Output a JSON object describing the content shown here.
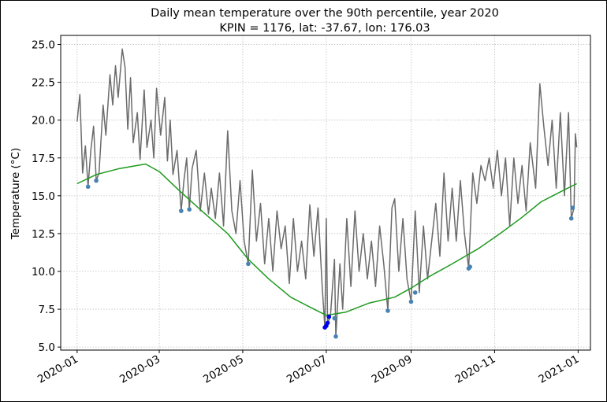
{
  "chart_data": {
    "type": "line",
    "title": "Daily mean temperature over the 90th percentile, year 2020",
    "subtitle": "KPIN = 1176, lat: -37.67, lon: 176.03",
    "xlabel": "",
    "ylabel": "Temperature (°C)",
    "ylim": [
      4.8,
      25.6
    ],
    "yticks": [
      5.0,
      7.5,
      10.0,
      12.5,
      15.0,
      17.5,
      20.0,
      22.5,
      25.0
    ],
    "ytick_labels": [
      "5.0",
      "7.5",
      "10.0",
      "12.5",
      "15.0",
      "17.5",
      "20.0",
      "22.5",
      "25.0"
    ],
    "xlim": [
      "2019-12-20",
      "2021-01-10"
    ],
    "xticks": [
      "2020-01-01",
      "2020-03-01",
      "2020-05-01",
      "2020-07-01",
      "2020-09-01",
      "2020-11-01",
      "2021-01-01"
    ],
    "xtick_labels": [
      "2020-01",
      "2020-03",
      "2020-05",
      "2020-07",
      "2020-09",
      "2020-11",
      "2021-01"
    ],
    "grid": true,
    "series": [
      {
        "style": "daily-mean-line",
        "color": "#6b6b6b",
        "points": [
          [
            "2020-01-01",
            19.9
          ],
          [
            "2020-01-03",
            21.7
          ],
          [
            "2020-01-05",
            16.5
          ],
          [
            "2020-01-07",
            18.3
          ],
          [
            "2020-01-09",
            15.6
          ],
          [
            "2020-01-11",
            18.0
          ],
          [
            "2020-01-13",
            19.6
          ],
          [
            "2020-01-15",
            16.0
          ],
          [
            "2020-01-17",
            16.5
          ],
          [
            "2020-01-20",
            21.0
          ],
          [
            "2020-01-22",
            19.0
          ],
          [
            "2020-01-25",
            23.0
          ],
          [
            "2020-01-27",
            21.0
          ],
          [
            "2020-01-29",
            23.6
          ],
          [
            "2020-01-31",
            21.5
          ],
          [
            "2020-02-03",
            24.7
          ],
          [
            "2020-02-05",
            23.5
          ],
          [
            "2020-02-07",
            19.4
          ],
          [
            "2020-02-09",
            22.8
          ],
          [
            "2020-02-11",
            18.5
          ],
          [
            "2020-02-14",
            20.5
          ],
          [
            "2020-02-16",
            17.4
          ],
          [
            "2020-02-19",
            22.0
          ],
          [
            "2020-02-21",
            18.2
          ],
          [
            "2020-02-24",
            20.0
          ],
          [
            "2020-02-26",
            17.5
          ],
          [
            "2020-02-28",
            22.1
          ],
          [
            "2020-03-02",
            19.0
          ],
          [
            "2020-03-05",
            21.5
          ],
          [
            "2020-03-07",
            17.3
          ],
          [
            "2020-03-09",
            20.0
          ],
          [
            "2020-03-11",
            16.4
          ],
          [
            "2020-03-14",
            18.0
          ],
          [
            "2020-03-17",
            14.0
          ],
          [
            "2020-03-19",
            16.0
          ],
          [
            "2020-03-21",
            17.5
          ],
          [
            "2020-03-23",
            14.1
          ],
          [
            "2020-03-25",
            16.8
          ],
          [
            "2020-03-28",
            18.0
          ],
          [
            "2020-03-31",
            14.0
          ],
          [
            "2020-04-03",
            16.5
          ],
          [
            "2020-04-06",
            13.8
          ],
          [
            "2020-04-08",
            15.5
          ],
          [
            "2020-04-11",
            13.5
          ],
          [
            "2020-04-14",
            16.5
          ],
          [
            "2020-04-17",
            13.0
          ],
          [
            "2020-04-20",
            19.3
          ],
          [
            "2020-04-23",
            14.0
          ],
          [
            "2020-04-26",
            12.5
          ],
          [
            "2020-04-29",
            16.0
          ],
          [
            "2020-05-02",
            12.0
          ],
          [
            "2020-05-05",
            10.5
          ],
          [
            "2020-05-08",
            16.7
          ],
          [
            "2020-05-11",
            12.0
          ],
          [
            "2020-05-14",
            14.5
          ],
          [
            "2020-05-17",
            10.5
          ],
          [
            "2020-05-20",
            13.5
          ],
          [
            "2020-05-23",
            10.0
          ],
          [
            "2020-05-26",
            14.0
          ],
          [
            "2020-05-29",
            11.5
          ],
          [
            "2020-06-01",
            13.0
          ],
          [
            "2020-06-04",
            9.2
          ],
          [
            "2020-06-07",
            13.5
          ],
          [
            "2020-06-10",
            10.0
          ],
          [
            "2020-06-13",
            12.0
          ],
          [
            "2020-06-16",
            9.5
          ],
          [
            "2020-06-19",
            14.4
          ],
          [
            "2020-06-22",
            11.0
          ],
          [
            "2020-06-25",
            14.2
          ],
          [
            "2020-06-28",
            9.0
          ],
          [
            "2020-06-30",
            6.3
          ],
          [
            "2020-07-01",
            13.5
          ],
          [
            "2020-07-02",
            6.6
          ],
          [
            "2020-07-04",
            7.0
          ],
          [
            "2020-07-07",
            10.8
          ],
          [
            "2020-07-08",
            5.7
          ],
          [
            "2020-07-11",
            10.5
          ],
          [
            "2020-07-13",
            7.5
          ],
          [
            "2020-07-16",
            13.5
          ],
          [
            "2020-07-19",
            9.0
          ],
          [
            "2020-07-22",
            14.0
          ],
          [
            "2020-07-25",
            10.0
          ],
          [
            "2020-07-28",
            12.5
          ],
          [
            "2020-07-31",
            9.5
          ],
          [
            "2020-08-03",
            12.0
          ],
          [
            "2020-08-06",
            9.0
          ],
          [
            "2020-08-09",
            13.0
          ],
          [
            "2020-08-12",
            10.5
          ],
          [
            "2020-08-15",
            7.4
          ],
          [
            "2020-08-18",
            14.2
          ],
          [
            "2020-08-20",
            14.8
          ],
          [
            "2020-08-23",
            10.0
          ],
          [
            "2020-08-26",
            13.5
          ],
          [
            "2020-08-29",
            9.5
          ],
          [
            "2020-09-01",
            8.0
          ],
          [
            "2020-09-04",
            14.0
          ],
          [
            "2020-09-07",
            8.6
          ],
          [
            "2020-09-10",
            13.0
          ],
          [
            "2020-09-13",
            9.5
          ],
          [
            "2020-09-16",
            12.0
          ],
          [
            "2020-09-19",
            14.5
          ],
          [
            "2020-09-22",
            11.0
          ],
          [
            "2020-09-25",
            16.5
          ],
          [
            "2020-09-28",
            12.0
          ],
          [
            "2020-10-01",
            15.5
          ],
          [
            "2020-10-04",
            12.0
          ],
          [
            "2020-10-07",
            16.0
          ],
          [
            "2020-10-10",
            12.5
          ],
          [
            "2020-10-13",
            10.2
          ],
          [
            "2020-10-16",
            16.5
          ],
          [
            "2020-10-19",
            14.5
          ],
          [
            "2020-10-22",
            17.0
          ],
          [
            "2020-10-25",
            16.0
          ],
          [
            "2020-10-28",
            17.5
          ],
          [
            "2020-10-31",
            15.5
          ],
          [
            "2020-11-03",
            18.0
          ],
          [
            "2020-11-06",
            15.0
          ],
          [
            "2020-11-09",
            17.5
          ],
          [
            "2020-11-12",
            13.0
          ],
          [
            "2020-11-15",
            17.5
          ],
          [
            "2020-11-18",
            14.5
          ],
          [
            "2020-11-21",
            17.0
          ],
          [
            "2020-11-24",
            14.0
          ],
          [
            "2020-11-27",
            18.5
          ],
          [
            "2020-12-01",
            15.5
          ],
          [
            "2020-12-04",
            22.4
          ],
          [
            "2020-12-07",
            19.5
          ],
          [
            "2020-12-10",
            17.0
          ],
          [
            "2020-12-13",
            20.0
          ],
          [
            "2020-12-16",
            15.5
          ],
          [
            "2020-12-19",
            20.5
          ],
          [
            "2020-12-22",
            15.0
          ],
          [
            "2020-12-25",
            20.5
          ],
          [
            "2020-12-27",
            13.5
          ],
          [
            "2020-12-29",
            14.2
          ],
          [
            "2020-12-30",
            19.1
          ],
          [
            "2020-12-31",
            18.2
          ]
        ]
      },
      {
        "style": "90th-percentile-line",
        "color": "#1f9a1f",
        "points": [
          [
            "2020-01-01",
            15.8
          ],
          [
            "2020-01-15",
            16.4
          ],
          [
            "2020-02-01",
            16.8
          ],
          [
            "2020-02-20",
            17.1
          ],
          [
            "2020-03-01",
            16.6
          ],
          [
            "2020-03-15",
            15.4
          ],
          [
            "2020-04-01",
            14.0
          ],
          [
            "2020-04-20",
            12.5
          ],
          [
            "2020-05-05",
            10.8
          ],
          [
            "2020-05-20",
            9.5
          ],
          [
            "2020-06-05",
            8.3
          ],
          [
            "2020-06-20",
            7.6
          ],
          [
            "2020-07-01",
            7.1
          ],
          [
            "2020-07-15",
            7.3
          ],
          [
            "2020-08-01",
            7.9
          ],
          [
            "2020-08-20",
            8.3
          ],
          [
            "2020-09-01",
            8.9
          ],
          [
            "2020-09-15",
            9.7
          ],
          [
            "2020-10-01",
            10.5
          ],
          [
            "2020-10-20",
            11.5
          ],
          [
            "2020-11-05",
            12.5
          ],
          [
            "2020-11-20",
            13.5
          ],
          [
            "2020-12-05",
            14.6
          ],
          [
            "2020-12-20",
            15.3
          ],
          [
            "2020-12-31",
            15.8
          ]
        ]
      }
    ],
    "markers": [
      {
        "color": "#4682b4",
        "points": [
          [
            "2020-01-09",
            15.6
          ],
          [
            "2020-01-15",
            16.0
          ],
          [
            "2020-03-17",
            14.0
          ],
          [
            "2020-03-23",
            14.1
          ],
          [
            "2020-05-05",
            10.5
          ],
          [
            "2020-07-08",
            5.7
          ],
          [
            "2020-07-07",
            6.9
          ],
          [
            "2020-08-15",
            7.4
          ],
          [
            "2020-09-01",
            8.0
          ],
          [
            "2020-09-04",
            8.6
          ],
          [
            "2020-10-13",
            10.2
          ],
          [
            "2020-10-14",
            10.3
          ],
          [
            "2020-12-27",
            13.5
          ],
          [
            "2020-12-28",
            14.2
          ]
        ]
      },
      {
        "color": "#0000ee",
        "points": [
          [
            "2020-06-30",
            6.3
          ],
          [
            "2020-07-01",
            6.4
          ],
          [
            "2020-07-02",
            6.6
          ],
          [
            "2020-07-03",
            7.0
          ]
        ]
      }
    ]
  }
}
